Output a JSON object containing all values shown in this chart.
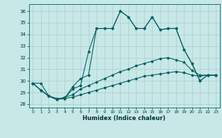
{
  "xlabel": "Humidex (Indice chaleur)",
  "background_color": "#c8e8e8",
  "grid_color": "#aacccc",
  "line_color": "#006060",
  "xlim": [
    -0.5,
    23.5
  ],
  "ylim": [
    27.7,
    36.6
  ],
  "x_ticks": [
    0,
    1,
    2,
    3,
    4,
    5,
    6,
    7,
    8,
    9,
    10,
    11,
    12,
    13,
    14,
    15,
    16,
    17,
    18,
    19,
    20,
    21,
    22,
    23
  ],
  "y_ticks": [
    28,
    29,
    30,
    31,
    32,
    33,
    34,
    35,
    36
  ],
  "s1_y": [
    29.8,
    29.8,
    28.7,
    28.5,
    28.5,
    29.5,
    30.2,
    30.5,
    34.5,
    34.5,
    34.5,
    36.0,
    35.5,
    34.5,
    34.5,
    35.5,
    34.4,
    34.5,
    34.5,
    32.7,
    31.5,
    30.0,
    30.5,
    30.5
  ],
  "s2_y": [
    29.8,
    29.2,
    28.7,
    28.4,
    28.5,
    29.3,
    29.6,
    32.5,
    34.5,
    34.5,
    34.5,
    36.0,
    35.5,
    34.5,
    34.5,
    35.5,
    34.4,
    34.5,
    34.5,
    32.7,
    31.5,
    30.0,
    30.5,
    30.5
  ],
  "s3_y": [
    29.8,
    29.2,
    28.7,
    28.4,
    28.6,
    28.8,
    29.3,
    29.6,
    29.9,
    30.2,
    30.5,
    30.8,
    31.0,
    31.3,
    31.5,
    31.7,
    31.9,
    32.0,
    31.8,
    31.6,
    30.9,
    30.5,
    30.5,
    30.5
  ],
  "s4_y": [
    29.8,
    29.2,
    28.7,
    28.4,
    28.5,
    28.6,
    28.8,
    29.0,
    29.2,
    29.4,
    29.6,
    29.8,
    30.0,
    30.2,
    30.4,
    30.5,
    30.6,
    30.7,
    30.8,
    30.7,
    30.5,
    30.4,
    30.5,
    30.5
  ]
}
